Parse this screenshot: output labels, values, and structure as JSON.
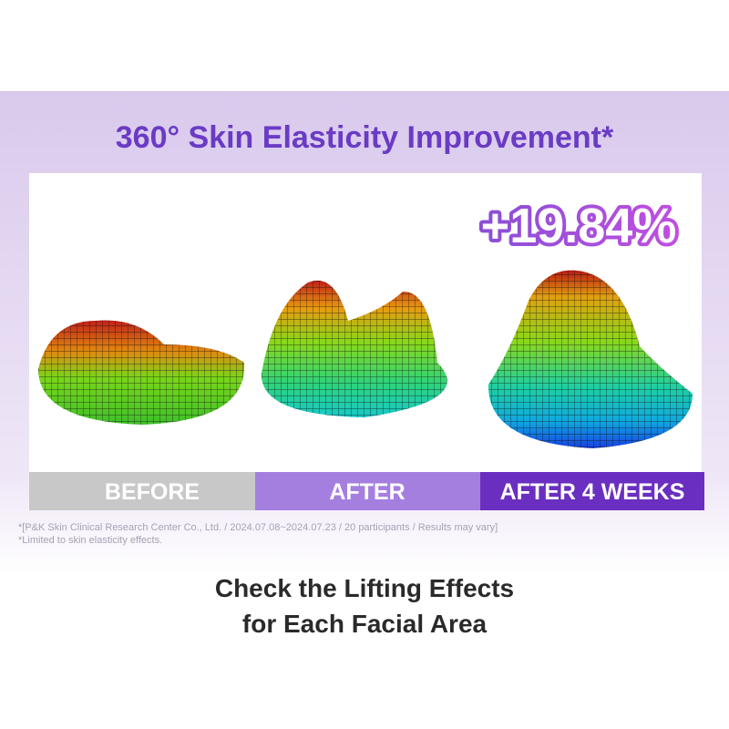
{
  "header": {
    "title": "360° Skin Elasticity Improvement*"
  },
  "badge": "+19.84%",
  "stages": [
    "BEFORE",
    "AFTER",
    "AFTER 4 WEEKS"
  ],
  "footnotes": [
    "*[P&K Skin Clinical Research Center Co., Ltd. / 2024.07.08~2024.07.23 / 20 participants / Results may vary]",
    "*Limited to skin elasticity effects."
  ],
  "footer": {
    "lines": [
      "Check the Lifting Effects",
      "for Each Facial Area"
    ]
  }
}
